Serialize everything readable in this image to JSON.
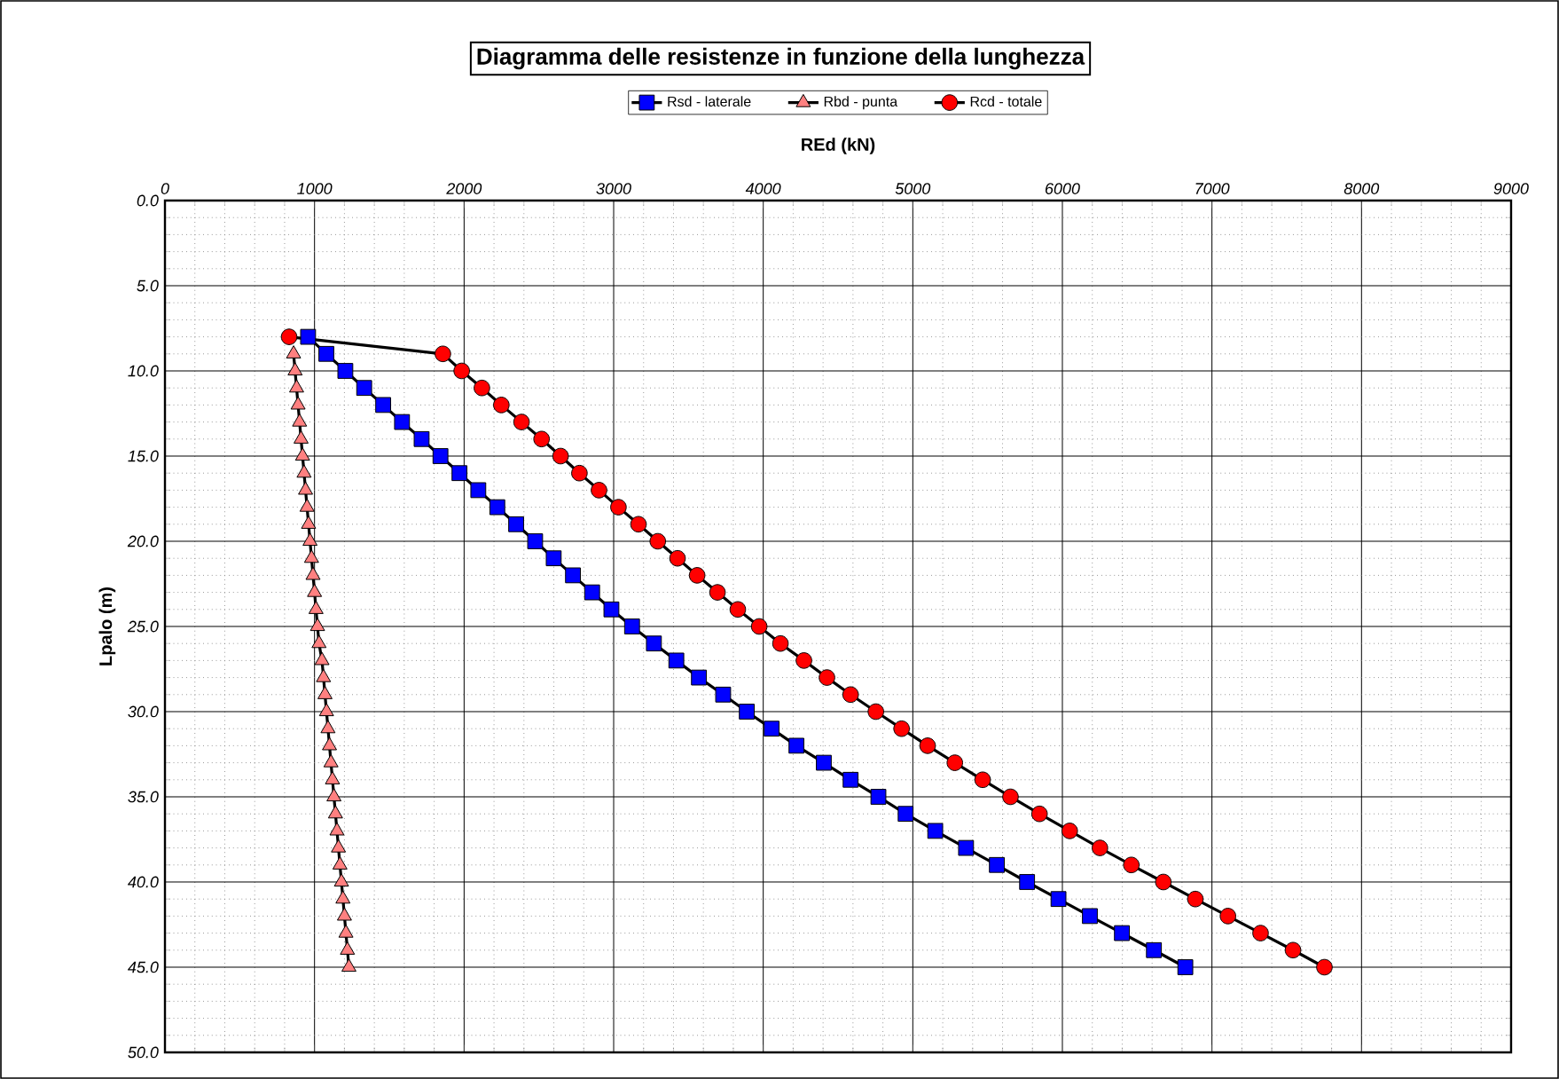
{
  "chart_data": {
    "type": "line",
    "title": "Diagramma delle resistenze in funzione della lunghezza",
    "xlabel": "REd (kN)",
    "ylabel": "Lpalo (m)",
    "xlim": [
      0,
      9000
    ],
    "xticks": [
      0,
      1000,
      2000,
      3000,
      4000,
      5000,
      6000,
      7000,
      8000,
      9000
    ],
    "ylim": [
      50,
      0
    ],
    "yticks": [
      {
        "value": 0,
        "label": "0.0"
      },
      {
        "value": 5,
        "label": "5.0"
      },
      {
        "value": 10,
        "label": "10.0"
      },
      {
        "value": 15,
        "label": "15.0"
      },
      {
        "value": 20,
        "label": "20.0"
      },
      {
        "value": 25,
        "label": "25.0"
      },
      {
        "value": 30,
        "label": "30.0"
      },
      {
        "value": 35,
        "label": "35.0"
      },
      {
        "value": 40,
        "label": "40.0"
      },
      {
        "value": 45,
        "label": "45.0"
      },
      {
        "value": 50,
        "label": "50.0"
      }
    ],
    "grid": true,
    "legend": "top",
    "series": [
      {
        "name": "Rsd - laterale",
        "color": "#0000ff",
        "marker": "square",
        "x": [
          957,
          1079,
          1206,
          1332,
          1459,
          1585,
          1716,
          1842,
          1969,
          2095,
          2222,
          2348,
          2475,
          2599,
          2728,
          2856,
          2985,
          3123,
          3269,
          3419,
          3570,
          3732,
          3890,
          4056,
          4222,
          4405,
          4584,
          4770,
          4952,
          5150,
          5356,
          5562,
          5764,
          5974,
          6184,
          6398,
          6612,
          6822
        ],
        "values": [
          8,
          9,
          10,
          11,
          12,
          13,
          14,
          15,
          16,
          17,
          18,
          19,
          20,
          21,
          22,
          23,
          24,
          25,
          26,
          27,
          28,
          29,
          30,
          31,
          32,
          33,
          34,
          35,
          36,
          37,
          38,
          39,
          40,
          41,
          42,
          43,
          44,
          45
        ]
      },
      {
        "name": "Rbd - punta",
        "color": "#ff8080",
        "marker": "triangle",
        "x": [
          860,
          870,
          880,
          890,
          900,
          910,
          920,
          930,
          940,
          950,
          960,
          970,
          980,
          990,
          1000,
          1010,
          1020,
          1030,
          1050,
          1060,
          1070,
          1080,
          1090,
          1100,
          1110,
          1120,
          1130,
          1140,
          1150,
          1160,
          1170,
          1180,
          1190,
          1200,
          1210,
          1220,
          1230
        ],
        "values": [
          9,
          10,
          11,
          12,
          13,
          14,
          15,
          16,
          17,
          18,
          19,
          20,
          21,
          22,
          23,
          24,
          25,
          26,
          27,
          28,
          29,
          30,
          31,
          32,
          33,
          34,
          35,
          36,
          37,
          38,
          39,
          40,
          41,
          42,
          43,
          44,
          45
        ]
      },
      {
        "name": "Rcd - totale",
        "color": "#ff0000",
        "marker": "circle",
        "x": [
          830,
          1858,
          1984,
          2119,
          2249,
          2384,
          2518,
          2645,
          2771,
          2902,
          3032,
          3166,
          3295,
          3427,
          3558,
          3694,
          3830,
          3973,
          4115,
          4272,
          4426,
          4584,
          4753,
          4925,
          5099,
          5281,
          5467,
          5653,
          5847,
          6049,
          6251,
          6461,
          6675,
          6889,
          7107,
          7325,
          7542,
          7752
        ],
        "values": [
          8,
          9,
          10,
          11,
          12,
          13,
          14,
          15,
          16,
          17,
          18,
          19,
          20,
          21,
          22,
          23,
          24,
          25,
          26,
          27,
          28,
          29,
          30,
          31,
          32,
          33,
          34,
          35,
          36,
          37,
          38,
          39,
          40,
          41,
          42,
          43,
          44,
          45
        ]
      }
    ]
  }
}
